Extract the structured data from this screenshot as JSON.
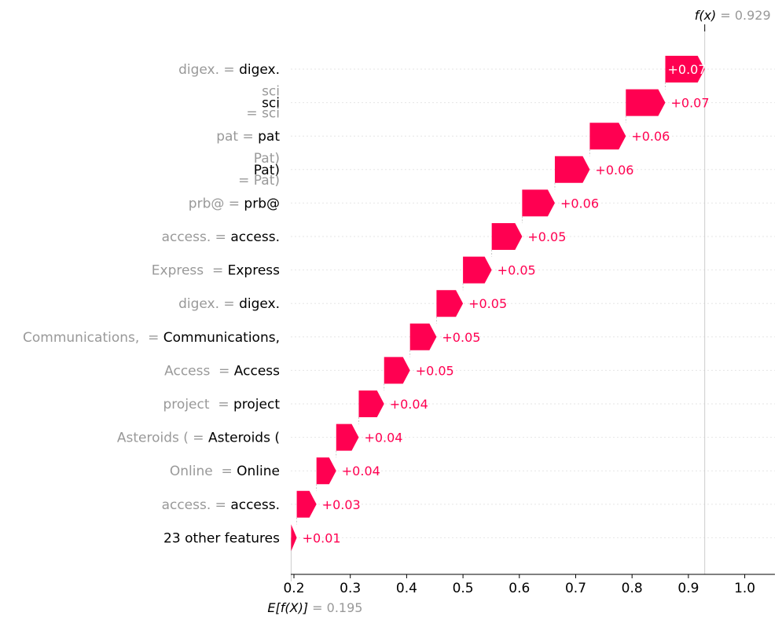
{
  "chart_data": {
    "type": "waterfall",
    "base_value": 0.195,
    "output_value": 0.929,
    "base_label_prefix": "E[f(X)]",
    "output_label_prefix": "f(x)",
    "base_value_text": "= 0.195",
    "output_value_text": "= 0.929",
    "xlim": [
      0.19,
      1.05
    ],
    "xticks": [
      0.2,
      0.3,
      0.4,
      0.5,
      0.6,
      0.7,
      0.8,
      0.9,
      1.0
    ],
    "xtick_labels": [
      "0.2",
      "0.3",
      "0.4",
      "0.5",
      "0.6",
      "0.7",
      "0.8",
      "0.9",
      "1.0"
    ],
    "colors": {
      "positive": "#ff0051",
      "label_grey": "#999999",
      "axis": "#000000",
      "gridline": "#cccccc"
    },
    "features": [
      {
        "name_grey": "digex. = ",
        "name_black": "digex.",
        "name_grey2": "",
        "multiline": false,
        "value": 0.07,
        "label": "+0.07"
      },
      {
        "name_grey": "sci",
        "name_black": "sci",
        "name_grey2": "= sci",
        "multiline": true,
        "value": 0.07,
        "label": "+0.07"
      },
      {
        "name_grey": "pat = ",
        "name_black": "pat",
        "name_grey2": "",
        "multiline": false,
        "value": 0.064,
        "label": "+0.06"
      },
      {
        "name_grey": "Pat)",
        "name_black": "Pat)",
        "name_grey2": "= Pat)",
        "multiline": true,
        "value": 0.062,
        "label": "+0.06"
      },
      {
        "name_grey": "prb@ = ",
        "name_black": "prb@",
        "name_grey2": "",
        "multiline": false,
        "value": 0.058,
        "label": "+0.06"
      },
      {
        "name_grey": "access. = ",
        "name_black": "access.",
        "name_grey2": "",
        "multiline": false,
        "value": 0.054,
        "label": "+0.05"
      },
      {
        "name_grey": "Express  = ",
        "name_black": "Express",
        "name_grey2": "",
        "multiline": false,
        "value": 0.051,
        "label": "+0.05"
      },
      {
        "name_grey": "digex. = ",
        "name_black": "digex.",
        "name_grey2": "",
        "multiline": false,
        "value": 0.047,
        "label": "+0.05"
      },
      {
        "name_grey": "Communications,  = ",
        "name_black": "Communications,",
        "name_grey2": "",
        "multiline": false,
        "value": 0.047,
        "label": "+0.05"
      },
      {
        "name_grey": "Access  = ",
        "name_black": "Access",
        "name_grey2": "",
        "multiline": false,
        "value": 0.046,
        "label": "+0.05"
      },
      {
        "name_grey": "project  = ",
        "name_black": "project",
        "name_grey2": "",
        "multiline": false,
        "value": 0.045,
        "label": "+0.04"
      },
      {
        "name_grey": "Asteroids ( = ",
        "name_black": "Asteroids (",
        "name_grey2": "",
        "multiline": false,
        "value": 0.04,
        "label": "+0.04"
      },
      {
        "name_grey": "Online  = ",
        "name_black": "Online",
        "name_grey2": "",
        "multiline": false,
        "value": 0.035,
        "label": "+0.04"
      },
      {
        "name_grey": "access. = ",
        "name_black": "access.",
        "name_grey2": "",
        "multiline": false,
        "value": 0.035,
        "label": "+0.03"
      },
      {
        "name_grey": "",
        "name_black": "23 other features",
        "name_grey2": "",
        "multiline": false,
        "value": 0.01,
        "label": "+0.01"
      }
    ]
  }
}
